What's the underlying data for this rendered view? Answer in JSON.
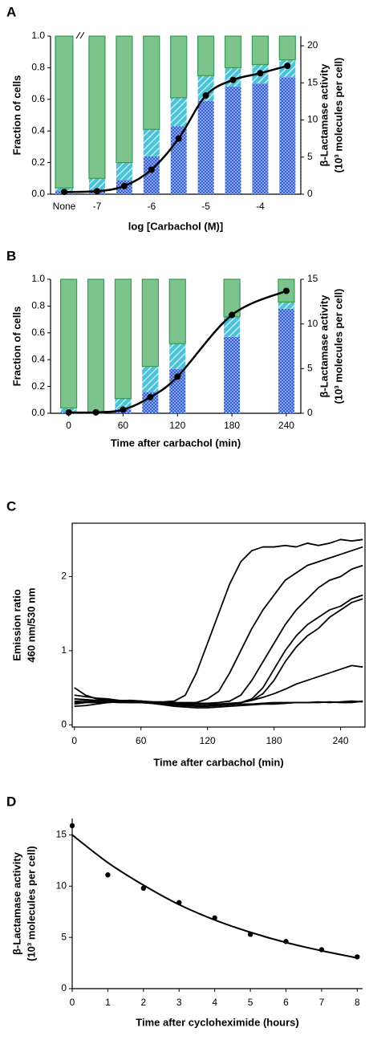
{
  "chart_data": [
    {
      "type": "bar",
      "panel": "A",
      "stacked": true,
      "ylabel": "Fraction of cells",
      "y2label": [
        "β-Lactamase activity",
        "(10³ molecules per cell)"
      ],
      "xlabel": "log [Carbachol (M)]",
      "categories": [
        "None",
        "-7",
        null,
        "-6",
        null,
        "-5",
        null,
        "-4",
        null
      ],
      "series": [
        {
          "color": "#1f4fd0",
          "pattern": "crosshatch",
          "values": [
            0.02,
            0.03,
            0.09,
            0.24,
            0.43,
            0.59,
            0.68,
            0.7,
            0.74
          ]
        },
        {
          "color": "#4cc3d6",
          "pattern": "hatch",
          "values": [
            0.02,
            0.07,
            0.11,
            0.17,
            0.18,
            0.16,
            0.12,
            0.12,
            0.11
          ]
        },
        {
          "color": "#7cc48c",
          "pattern": "solid",
          "values": [
            0.96,
            0.9,
            0.8,
            0.59,
            0.39,
            0.25,
            0.2,
            0.18,
            0.15
          ]
        },
        {
          "color": "#000000",
          "axis": "y2",
          "values": [
            0.3,
            0.4,
            1.1,
            3.3,
            7.5,
            13.3,
            15.4,
            16.3,
            17.3
          ]
        }
      ],
      "ylim": [
        0,
        1
      ],
      "yticks": [
        {
          "value": 0,
          "label": "0.0"
        },
        0.2,
        0.4,
        0.6,
        0.8,
        {
          "value": 1,
          "label": "1.0"
        }
      ],
      "y2lim": [
        0,
        21.3
      ],
      "y2ticks": [
        0,
        5,
        10,
        15,
        20
      ]
    },
    {
      "type": "bar",
      "panel": "B",
      "stacked": true,
      "ylabel": "Fraction of cells",
      "y2label": [
        "β-Lactamase activity",
        "(10³ molecules per cell)"
      ],
      "xlabel": "Time after carbachol (min)",
      "x": [
        0,
        30,
        60,
        90,
        120,
        180,
        240
      ],
      "series": [
        {
          "color": "#1f4fd0",
          "pattern": "crosshatch",
          "values": [
            0.01,
            0,
            0.03,
            0.16,
            0.33,
            0.57,
            0.78
          ]
        },
        {
          "color": "#4cc3d6",
          "pattern": "hatch",
          "values": [
            0.03,
            0,
            0.08,
            0.19,
            0.19,
            0.15,
            0.05
          ]
        },
        {
          "color": "#7cc48c",
          "pattern": "solid",
          "values": [
            0.96,
            1.0,
            0.89,
            0.65,
            0.48,
            0.28,
            0.17
          ]
        },
        {
          "color": "#000000",
          "axis": "y2",
          "values": [
            0.1,
            0.1,
            0.4,
            1.8,
            4.1,
            11,
            13.7
          ]
        }
      ],
      "xlim": [
        -20,
        256
      ],
      "xticks": [
        0,
        60,
        120,
        180,
        240
      ],
      "ylim": [
        0,
        1
      ],
      "yticks": [
        {
          "value": 0,
          "label": "0.0"
        },
        0.2,
        0.4,
        0.6,
        0.8,
        {
          "value": 1,
          "label": "1.0"
        }
      ],
      "y2lim": [
        0,
        15
      ],
      "y2ticks": [
        0,
        5,
        10,
        15
      ]
    },
    {
      "type": "line",
      "panel": "C",
      "frame": true,
      "ylabel": [
        "Emission ratio",
        "460 nm/530 nm"
      ],
      "xlabel": "Time after carbachol (min)",
      "x": [
        0,
        10,
        20,
        30,
        40,
        50,
        60,
        70,
        80,
        90,
        100,
        110,
        120,
        130,
        140,
        150,
        160,
        170,
        180,
        190,
        200,
        210,
        220,
        230,
        240,
        250,
        260
      ],
      "series": [
        {
          "color": "#000000",
          "values": [
            0.35,
            0.33,
            0.32,
            0.33,
            0.32,
            0.33,
            0.32,
            0.31,
            0.31,
            0.32,
            0.4,
            0.7,
            1.1,
            1.5,
            1.9,
            2.2,
            2.35,
            2.4,
            2.4,
            2.42,
            2.4,
            2.45,
            2.42,
            2.45,
            2.5,
            2.48,
            2.5
          ]
        },
        {
          "color": "#000000",
          "values": [
            0.5,
            0.4,
            0.35,
            0.33,
            0.32,
            0.33,
            0.32,
            0.3,
            0.3,
            0.3,
            0.3,
            0.3,
            0.35,
            0.45,
            0.7,
            1.0,
            1.3,
            1.55,
            1.75,
            1.95,
            2.05,
            2.15,
            2.2,
            2.25,
            2.3,
            2.35,
            2.4
          ]
        },
        {
          "color": "#000000",
          "values": [
            0.4,
            0.38,
            0.36,
            0.35,
            0.33,
            0.32,
            0.32,
            0.31,
            0.3,
            0.3,
            0.29,
            0.29,
            0.29,
            0.3,
            0.32,
            0.4,
            0.6,
            0.85,
            1.1,
            1.35,
            1.55,
            1.7,
            1.85,
            1.95,
            2.0,
            2.1,
            2.15
          ]
        },
        {
          "color": "#000000",
          "values": [
            0.32,
            0.31,
            0.3,
            0.3,
            0.31,
            0.3,
            0.3,
            0.3,
            0.29,
            0.29,
            0.28,
            0.28,
            0.28,
            0.28,
            0.29,
            0.3,
            0.35,
            0.5,
            0.75,
            1.0,
            1.2,
            1.35,
            1.45,
            1.55,
            1.6,
            1.7,
            1.75
          ]
        },
        {
          "color": "#000000",
          "values": [
            0.3,
            0.3,
            0.3,
            0.31,
            0.3,
            0.3,
            0.3,
            0.29,
            0.28,
            0.27,
            0.26,
            0.26,
            0.26,
            0.27,
            0.28,
            0.3,
            0.33,
            0.42,
            0.6,
            0.85,
            1.05,
            1.2,
            1.3,
            1.45,
            1.55,
            1.65,
            1.7
          ]
        },
        {
          "color": "#000000",
          "values": [
            0.35,
            0.34,
            0.33,
            0.33,
            0.32,
            0.31,
            0.3,
            0.3,
            0.29,
            0.28,
            0.27,
            0.26,
            0.26,
            0.27,
            0.28,
            0.3,
            0.33,
            0.37,
            0.42,
            0.48,
            0.55,
            0.6,
            0.65,
            0.7,
            0.75,
            0.8,
            0.78
          ]
        },
        {
          "color": "#000000",
          "values": [
            0.28,
            0.3,
            0.32,
            0.33,
            0.33,
            0.32,
            0.3,
            0.3,
            0.28,
            0.27,
            0.26,
            0.25,
            0.25,
            0.26,
            0.27,
            0.28,
            0.28,
            0.29,
            0.3,
            0.3,
            0.3,
            0.3,
            0.31,
            0.3,
            0.31,
            0.32,
            0.31
          ]
        },
        {
          "color": "#000000",
          "values": [
            0.25,
            0.26,
            0.28,
            0.3,
            0.31,
            0.3,
            0.3,
            0.29,
            0.27,
            0.25,
            0.24,
            0.23,
            0.23,
            0.24,
            0.25,
            0.26,
            0.27,
            0.28,
            0.28,
            0.29,
            0.3,
            0.3,
            0.3,
            0.31,
            0.3,
            0.3,
            0.32
          ]
        }
      ],
      "xlim": [
        -2,
        262
      ],
      "xticks": [
        0,
        60,
        120,
        180,
        240
      ],
      "ylim": [
        -0.03,
        2.72
      ],
      "yticks": [
        0,
        1,
        2
      ]
    },
    {
      "type": "scatter",
      "panel": "D",
      "ylabel": [
        "β-Lactamase activity",
        "(10³ molecules per cell)"
      ],
      "xlabel": "Time after cycloheximide (hours)",
      "x": [
        0,
        1,
        2,
        3,
        4,
        5,
        6,
        7,
        8
      ],
      "series": [
        {
          "color": "#000000",
          "values": [
            15.9,
            11.1,
            9.8,
            8.4,
            6.9,
            5.3,
            4.6,
            3.8,
            3.1
          ]
        },
        {
          "color": "#000000",
          "style": "line",
          "values": [
            15.0,
            12.3,
            10.1,
            8.2,
            6.7,
            5.5,
            4.5,
            3.7,
            3.0
          ]
        }
      ],
      "xlim": [
        0,
        8.15
      ],
      "xticks": [
        0,
        1,
        2,
        3,
        4,
        5,
        6,
        7,
        8
      ],
      "ylim": [
        0,
        16.6
      ],
      "yticks": [
        0,
        5,
        10,
        15
      ]
    }
  ]
}
